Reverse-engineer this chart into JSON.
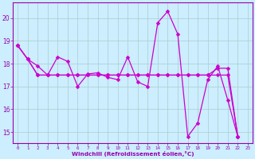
{
  "xlabel": "Windchill (Refroidissement éolien,°C)",
  "background_color": "#cceeff",
  "grid_color": "#aacccc",
  "line_color": "#cc00cc",
  "spine_color": "#9900aa",
  "xlim": [
    -0.5,
    23.5
  ],
  "ylim": [
    14.5,
    20.7
  ],
  "yticks": [
    15,
    16,
    17,
    18,
    19,
    20
  ],
  "xtick_labels": [
    "0",
    "1",
    "2",
    "3",
    "4",
    "5",
    "6",
    "7",
    "8",
    "9",
    "10",
    "11",
    "12",
    "13",
    "14",
    "15",
    "16",
    "17",
    "18",
    "19",
    "20",
    "21",
    "22",
    "23"
  ],
  "series1_x": [
    0,
    1,
    2,
    3,
    4,
    5,
    6,
    7,
    8,
    9,
    10,
    11,
    12,
    13,
    14,
    15,
    16,
    17,
    18,
    19,
    20,
    21,
    22
  ],
  "series1_y": [
    18.8,
    18.2,
    17.9,
    17.5,
    18.3,
    18.1,
    17.0,
    17.55,
    17.6,
    17.4,
    17.3,
    18.3,
    17.2,
    17.0,
    19.8,
    20.3,
    19.3,
    14.8,
    15.4,
    17.3,
    17.9,
    16.4,
    14.8
  ],
  "series2_x": [
    0,
    1,
    2,
    3,
    4,
    5,
    6,
    7,
    8,
    9,
    10,
    11,
    12,
    13,
    14,
    15,
    16,
    17,
    18,
    19,
    20,
    21,
    22
  ],
  "series2_y": [
    18.8,
    18.2,
    17.5,
    17.5,
    17.5,
    17.5,
    17.5,
    17.5,
    17.5,
    17.5,
    17.5,
    17.5,
    17.5,
    17.5,
    17.5,
    17.5,
    17.5,
    17.5,
    17.5,
    17.5,
    17.5,
    17.5,
    14.8
  ],
  "series3_x": [
    0,
    1,
    2,
    3,
    4,
    5,
    6,
    7,
    8,
    9,
    10,
    11,
    12,
    13,
    14,
    15,
    16,
    17,
    18,
    19,
    20,
    21,
    22
  ],
  "series3_y": [
    18.8,
    18.2,
    17.5,
    17.5,
    17.5,
    17.5,
    17.5,
    17.5,
    17.5,
    17.5,
    17.5,
    17.5,
    17.5,
    17.5,
    17.5,
    17.5,
    17.5,
    17.5,
    17.5,
    17.5,
    17.8,
    17.8,
    14.8
  ],
  "marker_size": 2.5,
  "line_width": 0.9,
  "xlabel_fontsize": 5.2,
  "ylabel_fontsize": 5.5,
  "xtick_fontsize": 4.2,
  "ytick_fontsize": 5.5
}
